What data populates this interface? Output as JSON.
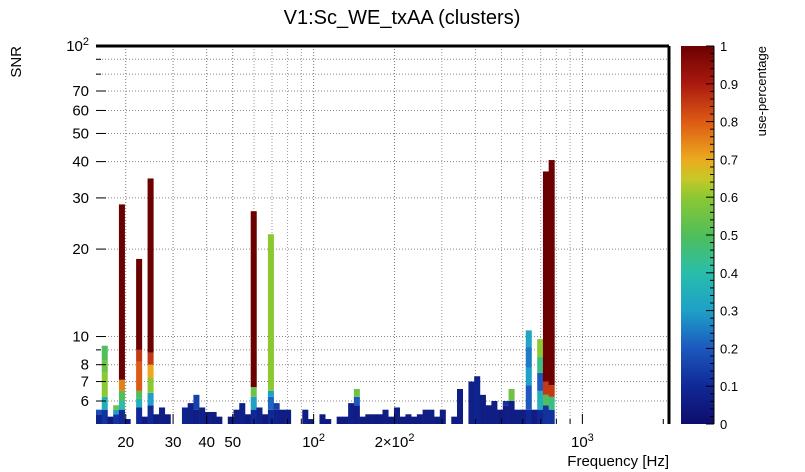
{
  "chart_data": {
    "type": "heatmap",
    "title": "V1:Sc_WE_txAA (clusters)",
    "xlabel": "Frequency [Hz]",
    "ylabel": "SNR",
    "zlabel": "use-percentage",
    "x_scale": "log",
    "y_scale": "log",
    "xlim": [
      15.5,
      2100
    ],
    "ylim": [
      5,
      100
    ],
    "zlim": [
      0,
      1
    ],
    "grid": true,
    "colorbar_position": "right",
    "x_ticks": [
      {
        "value": 20,
        "label": "20"
      },
      {
        "value": 30,
        "label": "30"
      },
      {
        "value": 40,
        "label": "40"
      },
      {
        "value": 50,
        "label": "50"
      },
      {
        "value": 100,
        "label": "10",
        "sup": "2"
      },
      {
        "value": 200,
        "label": "2×10",
        "sup": "2"
      },
      {
        "value": 1000,
        "label": "10",
        "sup": "3"
      }
    ],
    "y_ticks": [
      {
        "value": 6,
        "label": "6"
      },
      {
        "value": 7,
        "label": "7"
      },
      {
        "value": 8,
        "label": "8"
      },
      {
        "value": 10,
        "label": "10"
      },
      {
        "value": 20,
        "label": "20"
      },
      {
        "value": 30,
        "label": "30"
      },
      {
        "value": 40,
        "label": "40"
      },
      {
        "value": 50,
        "label": "50"
      },
      {
        "value": 60,
        "label": "60"
      },
      {
        "value": 70,
        "label": "70"
      },
      {
        "value": 100,
        "label": "10",
        "sup": "2"
      }
    ],
    "colorbar_ticks": [
      "0",
      "0.1",
      "0.2",
      "0.3",
      "0.4",
      "0.5",
      "0.6",
      "0.7",
      "0.8",
      "0.9",
      "1"
    ],
    "x_bins": 100,
    "y_bins": 80,
    "columns": [
      {
        "bin": 1,
        "top": 5.6,
        "cells": [
          [
            5.0,
            0.08
          ],
          [
            5.4,
            0.18
          ]
        ]
      },
      {
        "bin": 2,
        "top": 9.3,
        "cells": [
          [
            5.0,
            0.12
          ],
          [
            5.6,
            0.35
          ],
          [
            6.2,
            0.6
          ],
          [
            7.5,
            0.55
          ],
          [
            8.3,
            0.5
          ]
        ]
      },
      {
        "bin": 3,
        "top": 5.3,
        "cells": [
          [
            5.0,
            0.05
          ]
        ]
      },
      {
        "bin": 4,
        "top": 5.8,
        "cells": [
          [
            5.0,
            0.12
          ],
          [
            5.4,
            0.3
          ],
          [
            5.6,
            0.55
          ]
        ]
      },
      {
        "bin": 5,
        "top": 28.5,
        "cells": [
          [
            5.0,
            0.1
          ],
          [
            5.6,
            0.4
          ],
          [
            6.0,
            0.5
          ],
          [
            6.5,
            0.75
          ],
          [
            7.1,
            1.0
          ]
        ]
      },
      {
        "bin": 6,
        "top": 5.2,
        "cells": [
          [
            5.0,
            0.05
          ]
        ]
      },
      {
        "bin": 8,
        "top": 18.5,
        "cells": [
          [
            5.0,
            0.1
          ],
          [
            5.7,
            0.35
          ],
          [
            6.1,
            0.5
          ],
          [
            6.5,
            0.8
          ],
          [
            8.2,
            0.85
          ],
          [
            9.0,
            1.0
          ]
        ]
      },
      {
        "bin": 9,
        "top": 5.3,
        "cells": [
          [
            5.0,
            0.05
          ]
        ]
      },
      {
        "bin": 10,
        "top": 35.0,
        "cells": [
          [
            5.0,
            0.1
          ],
          [
            5.8,
            0.3
          ],
          [
            6.4,
            0.6
          ],
          [
            7.2,
            0.7
          ],
          [
            8.0,
            0.85
          ],
          [
            8.8,
            1.0
          ]
        ]
      },
      {
        "bin": 11,
        "top": 5.4,
        "cells": [
          [
            5.0,
            0.05
          ]
        ]
      },
      {
        "bin": 12,
        "top": 5.7,
        "cells": [
          [
            5.0,
            0.06
          ]
        ]
      },
      {
        "bin": 13,
        "top": 5.4,
        "cells": [
          [
            5.0,
            0.05
          ]
        ]
      },
      {
        "bin": 16,
        "top": 5.7,
        "cells": [
          [
            5.0,
            0.08
          ]
        ]
      },
      {
        "bin": 17,
        "top": 5.9,
        "cells": [
          [
            5.0,
            0.07
          ]
        ]
      },
      {
        "bin": 18,
        "top": 6.3,
        "cells": [
          [
            5.0,
            0.06
          ],
          [
            5.6,
            0.15
          ]
        ]
      },
      {
        "bin": 19,
        "top": 5.7,
        "cells": [
          [
            5.0,
            0.07
          ]
        ]
      },
      {
        "bin": 20,
        "top": 5.5,
        "cells": [
          [
            5.0,
            0.06
          ]
        ]
      },
      {
        "bin": 21,
        "top": 5.5,
        "cells": [
          [
            5.0,
            0.06
          ]
        ]
      },
      {
        "bin": 22,
        "top": 5.3,
        "cells": [
          [
            5.0,
            0.05
          ]
        ]
      },
      {
        "bin": 24,
        "top": 5.3,
        "cells": [
          [
            5.0,
            0.05
          ]
        ]
      },
      {
        "bin": 25,
        "top": 5.6,
        "cells": [
          [
            5.0,
            0.06
          ]
        ]
      },
      {
        "bin": 26,
        "top": 5.9,
        "cells": [
          [
            5.0,
            0.07
          ]
        ]
      },
      {
        "bin": 27,
        "top": 5.4,
        "cells": [
          [
            5.0,
            0.05
          ]
        ]
      },
      {
        "bin": 28,
        "top": 27.0,
        "cells": [
          [
            5.0,
            0.1
          ],
          [
            5.6,
            0.3
          ],
          [
            6.2,
            0.55
          ],
          [
            6.7,
            1.0
          ]
        ]
      },
      {
        "bin": 29,
        "top": 5.7,
        "cells": [
          [
            5.0,
            0.07
          ]
        ]
      },
      {
        "bin": 30,
        "top": 5.4,
        "cells": [
          [
            5.0,
            0.05
          ]
        ]
      },
      {
        "bin": 31,
        "top": 22.5,
        "cells": [
          [
            5.0,
            0.1
          ],
          [
            5.6,
            0.22
          ],
          [
            6.2,
            0.3
          ],
          [
            6.5,
            0.6
          ]
        ]
      },
      {
        "bin": 32,
        "top": 5.9,
        "cells": [
          [
            5.0,
            0.07
          ],
          [
            5.6,
            0.15
          ]
        ]
      },
      {
        "bin": 33,
        "top": 5.6,
        "cells": [
          [
            5.0,
            0.06
          ]
        ]
      },
      {
        "bin": 34,
        "top": 5.6,
        "cells": [
          [
            5.0,
            0.06
          ]
        ]
      },
      {
        "bin": 37,
        "top": 5.6,
        "cells": [
          [
            5.0,
            0.06
          ]
        ]
      },
      {
        "bin": 38,
        "top": 5.2,
        "cells": [
          [
            5.0,
            0.05
          ]
        ]
      },
      {
        "bin": 40,
        "top": 5.4,
        "cells": [
          [
            5.0,
            0.05
          ]
        ]
      },
      {
        "bin": 41,
        "top": 5.2,
        "cells": [
          [
            5.0,
            0.05
          ]
        ]
      },
      {
        "bin": 43,
        "top": 5.3,
        "cells": [
          [
            5.0,
            0.05
          ]
        ]
      },
      {
        "bin": 44,
        "top": 5.3,
        "cells": [
          [
            5.0,
            0.05
          ]
        ]
      },
      {
        "bin": 45,
        "top": 5.9,
        "cells": [
          [
            5.0,
            0.07
          ]
        ]
      },
      {
        "bin": 46,
        "top": 6.6,
        "cells": [
          [
            5.0,
            0.06
          ],
          [
            5.8,
            0.2
          ],
          [
            6.2,
            0.55
          ]
        ]
      },
      {
        "bin": 47,
        "top": 5.3,
        "cells": [
          [
            5.0,
            0.05
          ]
        ]
      },
      {
        "bin": 48,
        "top": 5.4,
        "cells": [
          [
            5.0,
            0.05
          ]
        ]
      },
      {
        "bin": 49,
        "top": 5.4,
        "cells": [
          [
            5.0,
            0.05
          ]
        ]
      },
      {
        "bin": 50,
        "top": 5.4,
        "cells": [
          [
            5.0,
            0.05
          ]
        ]
      },
      {
        "bin": 51,
        "top": 5.6,
        "cells": [
          [
            5.0,
            0.06
          ]
        ]
      },
      {
        "bin": 52,
        "top": 5.3,
        "cells": [
          [
            5.0,
            0.05
          ]
        ]
      },
      {
        "bin": 53,
        "top": 5.7,
        "cells": [
          [
            5.0,
            0.06
          ]
        ]
      },
      {
        "bin": 54,
        "top": 5.3,
        "cells": [
          [
            5.0,
            0.05
          ]
        ]
      },
      {
        "bin": 55,
        "top": 5.4,
        "cells": [
          [
            5.0,
            0.05
          ]
        ]
      },
      {
        "bin": 56,
        "top": 5.3,
        "cells": [
          [
            5.0,
            0.05
          ]
        ]
      },
      {
        "bin": 57,
        "top": 5.4,
        "cells": [
          [
            5.0,
            0.05
          ]
        ]
      },
      {
        "bin": 58,
        "top": 5.6,
        "cells": [
          [
            5.0,
            0.06
          ]
        ]
      },
      {
        "bin": 59,
        "top": 5.6,
        "cells": [
          [
            5.0,
            0.06
          ]
        ]
      },
      {
        "bin": 60,
        "top": 5.3,
        "cells": [
          [
            5.0,
            0.05
          ]
        ]
      },
      {
        "bin": 61,
        "top": 5.6,
        "cells": [
          [
            5.0,
            0.06
          ]
        ]
      },
      {
        "bin": 63,
        "top": 5.3,
        "cells": [
          [
            5.0,
            0.05
          ]
        ]
      },
      {
        "bin": 64,
        "top": 6.6,
        "cells": [
          [
            5.0,
            0.06
          ]
        ]
      },
      {
        "bin": 66,
        "top": 7.0,
        "cells": [
          [
            5.0,
            0.07
          ]
        ]
      },
      {
        "bin": 67,
        "top": 7.3,
        "cells": [
          [
            5.0,
            0.08
          ]
        ]
      },
      {
        "bin": 68,
        "top": 6.3,
        "cells": [
          [
            5.0,
            0.06
          ]
        ]
      },
      {
        "bin": 69,
        "top": 5.8,
        "cells": [
          [
            5.0,
            0.06
          ]
        ]
      },
      {
        "bin": 70,
        "top": 6.0,
        "cells": [
          [
            5.0,
            0.06
          ]
        ]
      },
      {
        "bin": 71,
        "top": 5.6,
        "cells": [
          [
            5.0,
            0.05
          ]
        ]
      },
      {
        "bin": 72,
        "top": 6.0,
        "cells": [
          [
            5.0,
            0.06
          ],
          [
            5.8,
            0.12
          ]
        ]
      },
      {
        "bin": 73,
        "top": 6.6,
        "cells": [
          [
            5.0,
            0.06
          ],
          [
            6.0,
            0.55
          ]
        ]
      },
      {
        "bin": 74,
        "top": 5.6,
        "cells": [
          [
            5.0,
            0.06
          ]
        ]
      },
      {
        "bin": 75,
        "top": 5.6,
        "cells": [
          [
            5.0,
            0.06
          ]
        ]
      },
      {
        "bin": 76,
        "top": 10.5,
        "cells": [
          [
            5.0,
            0.1
          ],
          [
            5.6,
            0.2
          ],
          [
            6.8,
            0.3
          ],
          [
            7.8,
            0.25
          ],
          [
            9.2,
            0.32
          ]
        ]
      },
      {
        "bin": 77,
        "top": 5.6,
        "cells": [
          [
            5.0,
            0.06
          ]
        ]
      },
      {
        "bin": 78,
        "top": 9.8,
        "cells": [
          [
            5.0,
            0.1
          ],
          [
            5.6,
            0.35
          ],
          [
            6.5,
            0.2
          ],
          [
            7.5,
            0.45
          ],
          [
            8.5,
            0.6
          ]
        ]
      },
      {
        "bin": 79,
        "top": 37.0,
        "cells": [
          [
            5.0,
            0.12
          ],
          [
            5.8,
            0.5
          ],
          [
            6.3,
            0.85
          ],
          [
            7.0,
            1.0
          ]
        ]
      },
      {
        "bin": 80,
        "top": 40.5,
        "cells": [
          [
            5.0,
            0.12
          ],
          [
            5.6,
            0.45
          ],
          [
            6.2,
            0.85
          ],
          [
            6.8,
            1.0
          ]
        ]
      }
    ]
  }
}
